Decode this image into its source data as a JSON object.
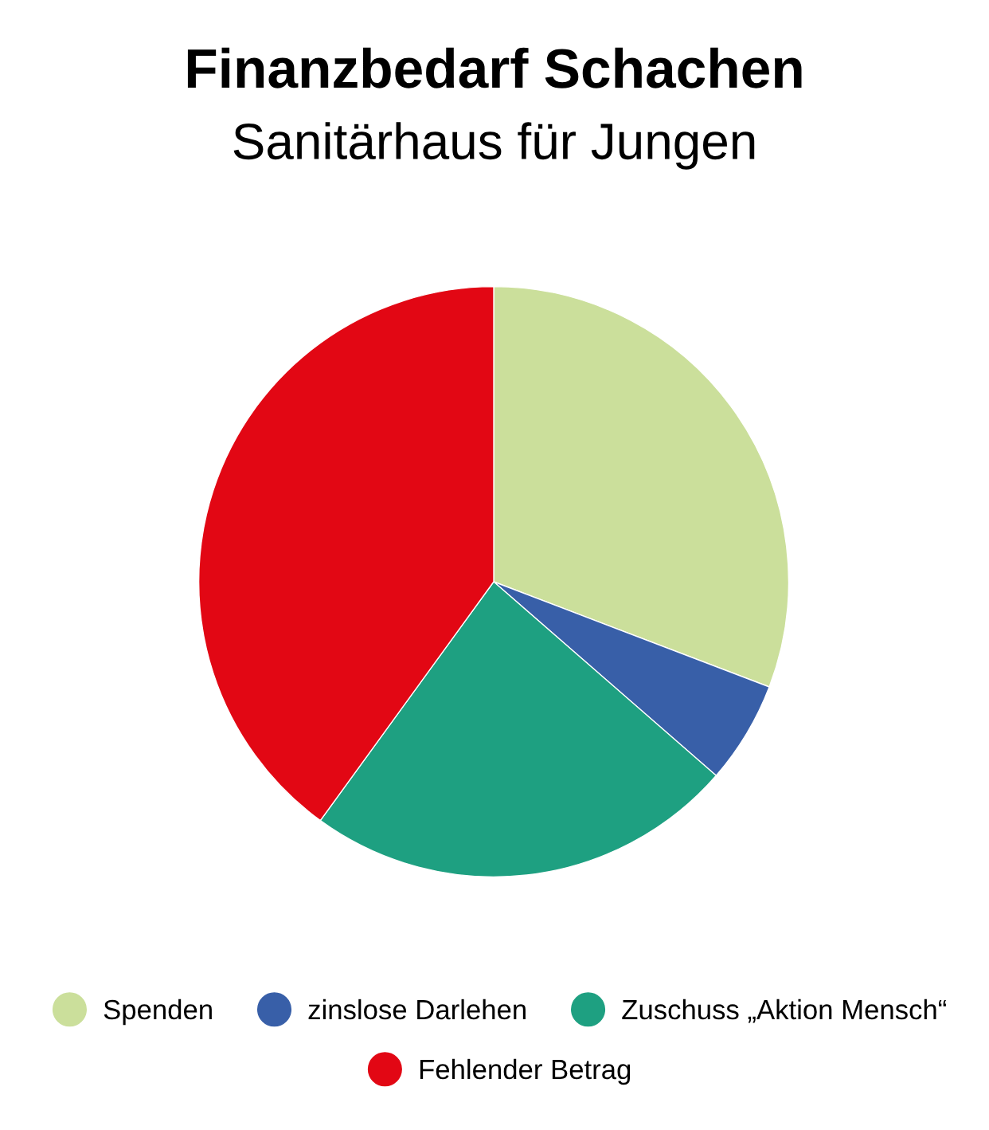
{
  "chart_data": {
    "type": "pie",
    "title": "Finanzbedarf Schachen",
    "subtitle": "Sanitärhaus für Jungen",
    "categories": [
      "Spenden",
      "zinslose Darlehen",
      "Zuschuss „Aktion Mensch“",
      "Fehlender Betrag"
    ],
    "values": [
      30.8,
      5.6,
      23.6,
      40.0
    ],
    "colors": [
      "#cbdf9b",
      "#385fa8",
      "#1ea081",
      "#e20714"
    ],
    "legend": "bottom"
  }
}
